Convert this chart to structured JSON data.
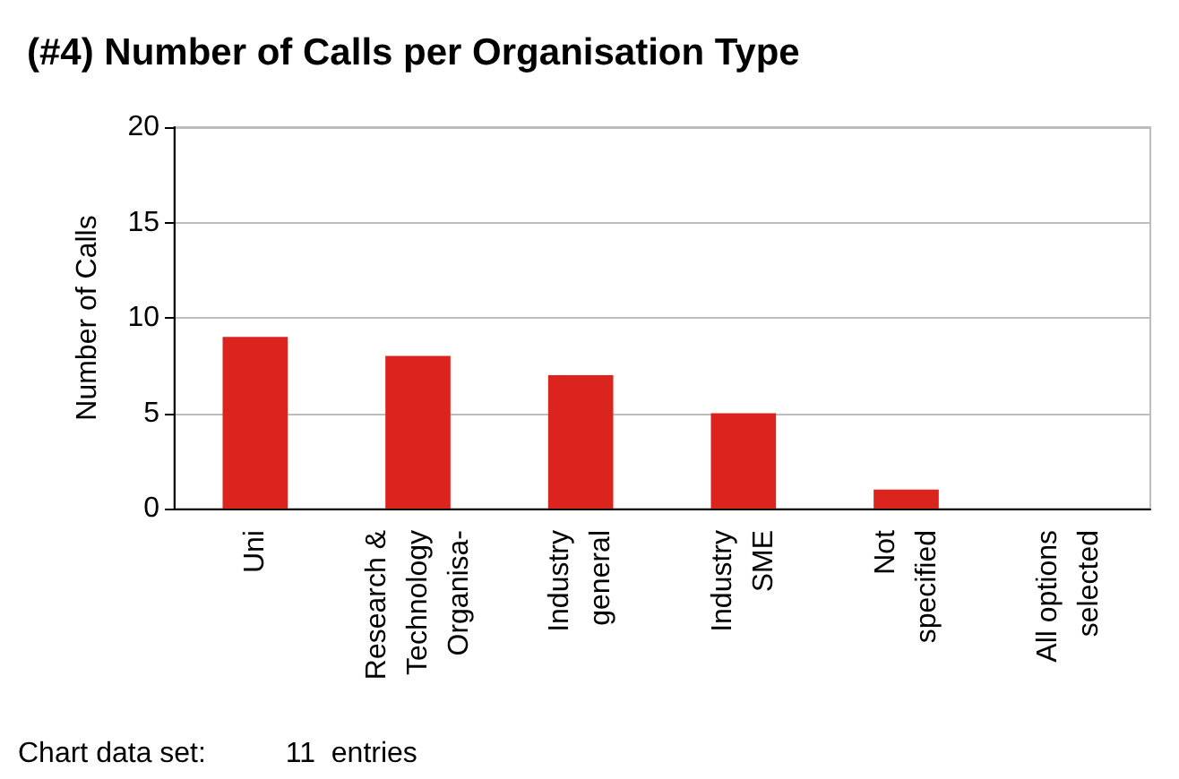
{
  "chart_data": {
    "type": "bar",
    "title": "(#4) Number of Calls per Organisation Type",
    "ylabel": "Number of Calls",
    "categories": [
      "Uni",
      "Research &\nTechnology\nOrganisa-",
      "Industry\ngeneral",
      "Industry\nSME",
      "Not\nspecified",
      "All options\nselected"
    ],
    "values": [
      9,
      8,
      7,
      5,
      1,
      0
    ],
    "color": "#dc241f",
    "ylim": [
      0,
      20
    ],
    "yticks": [
      0,
      5,
      10,
      15,
      20
    ],
    "grid": "y",
    "annotations": [
      "Chart data set:          11  entries"
    ]
  }
}
